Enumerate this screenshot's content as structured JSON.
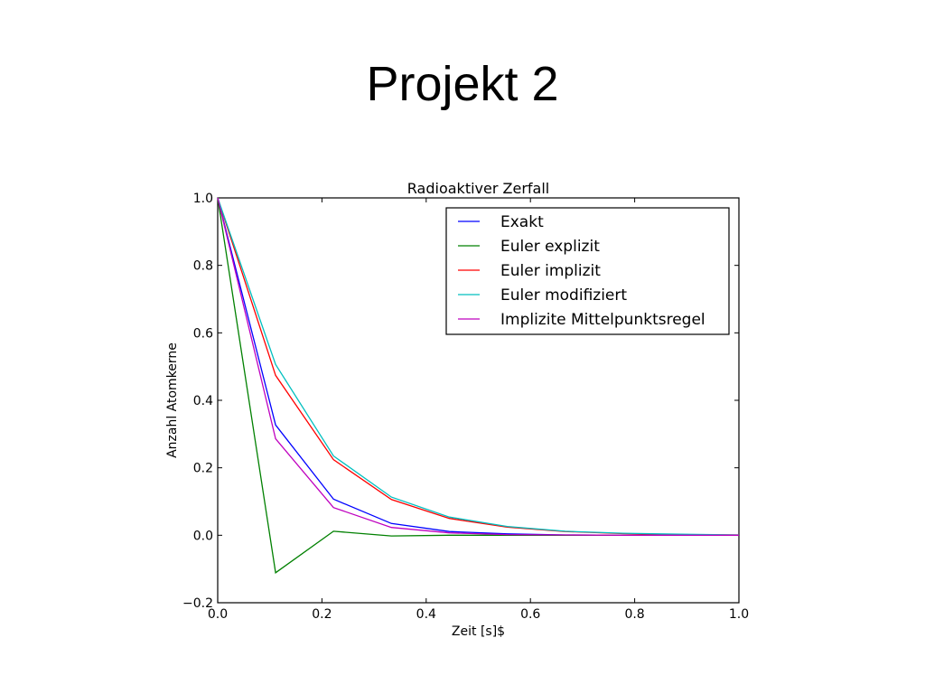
{
  "slide": {
    "title": "Projekt 2"
  },
  "chart_data": {
    "type": "line",
    "title": "Radioaktiver Zerfall",
    "xlabel": "Zeit [s]$",
    "ylabel": "Anzahl Atomkerne",
    "xlim": [
      0.0,
      1.0
    ],
    "ylim": [
      -0.2,
      1.0
    ],
    "x_ticks": [
      "0.0",
      "0.2",
      "0.4",
      "0.6",
      "0.8",
      "1.0"
    ],
    "y_ticks": [
      "−0.2",
      "0.0",
      "0.2",
      "0.4",
      "0.6",
      "0.8",
      "1.0"
    ],
    "grid": false,
    "legend_position": "top-right",
    "x": [
      0.0,
      0.1111,
      0.2222,
      0.3333,
      0.4444,
      0.5556,
      0.6667,
      0.7778,
      0.8889,
      1.0
    ],
    "series": [
      {
        "name": "Exakt",
        "color": "#0000ff",
        "values": [
          1.0,
          0.327,
          0.107,
          0.035,
          0.011,
          0.004,
          0.001,
          0.0,
          0.0,
          0.0
        ]
      },
      {
        "name": "Euler explizit",
        "color": "#008000",
        "values": [
          1.0,
          -0.111,
          0.012,
          -0.002,
          0.0,
          0.0,
          0.0,
          0.0,
          0.0,
          0.0
        ]
      },
      {
        "name": "Euler implizit",
        "color": "#ff0000",
        "values": [
          1.0,
          0.474,
          0.224,
          0.106,
          0.05,
          0.024,
          0.011,
          0.005,
          0.002,
          0.001
        ]
      },
      {
        "name": "Euler modifiziert",
        "color": "#00bfbf",
        "values": [
          1.0,
          0.506,
          0.235,
          0.113,
          0.054,
          0.026,
          0.012,
          0.006,
          0.003,
          0.001
        ]
      },
      {
        "name": "Implizite Mittelpunktsregel",
        "color": "#bf00bf",
        "values": [
          1.0,
          0.286,
          0.082,
          0.023,
          0.007,
          0.002,
          0.001,
          0.0,
          0.0,
          0.0
        ]
      }
    ]
  }
}
